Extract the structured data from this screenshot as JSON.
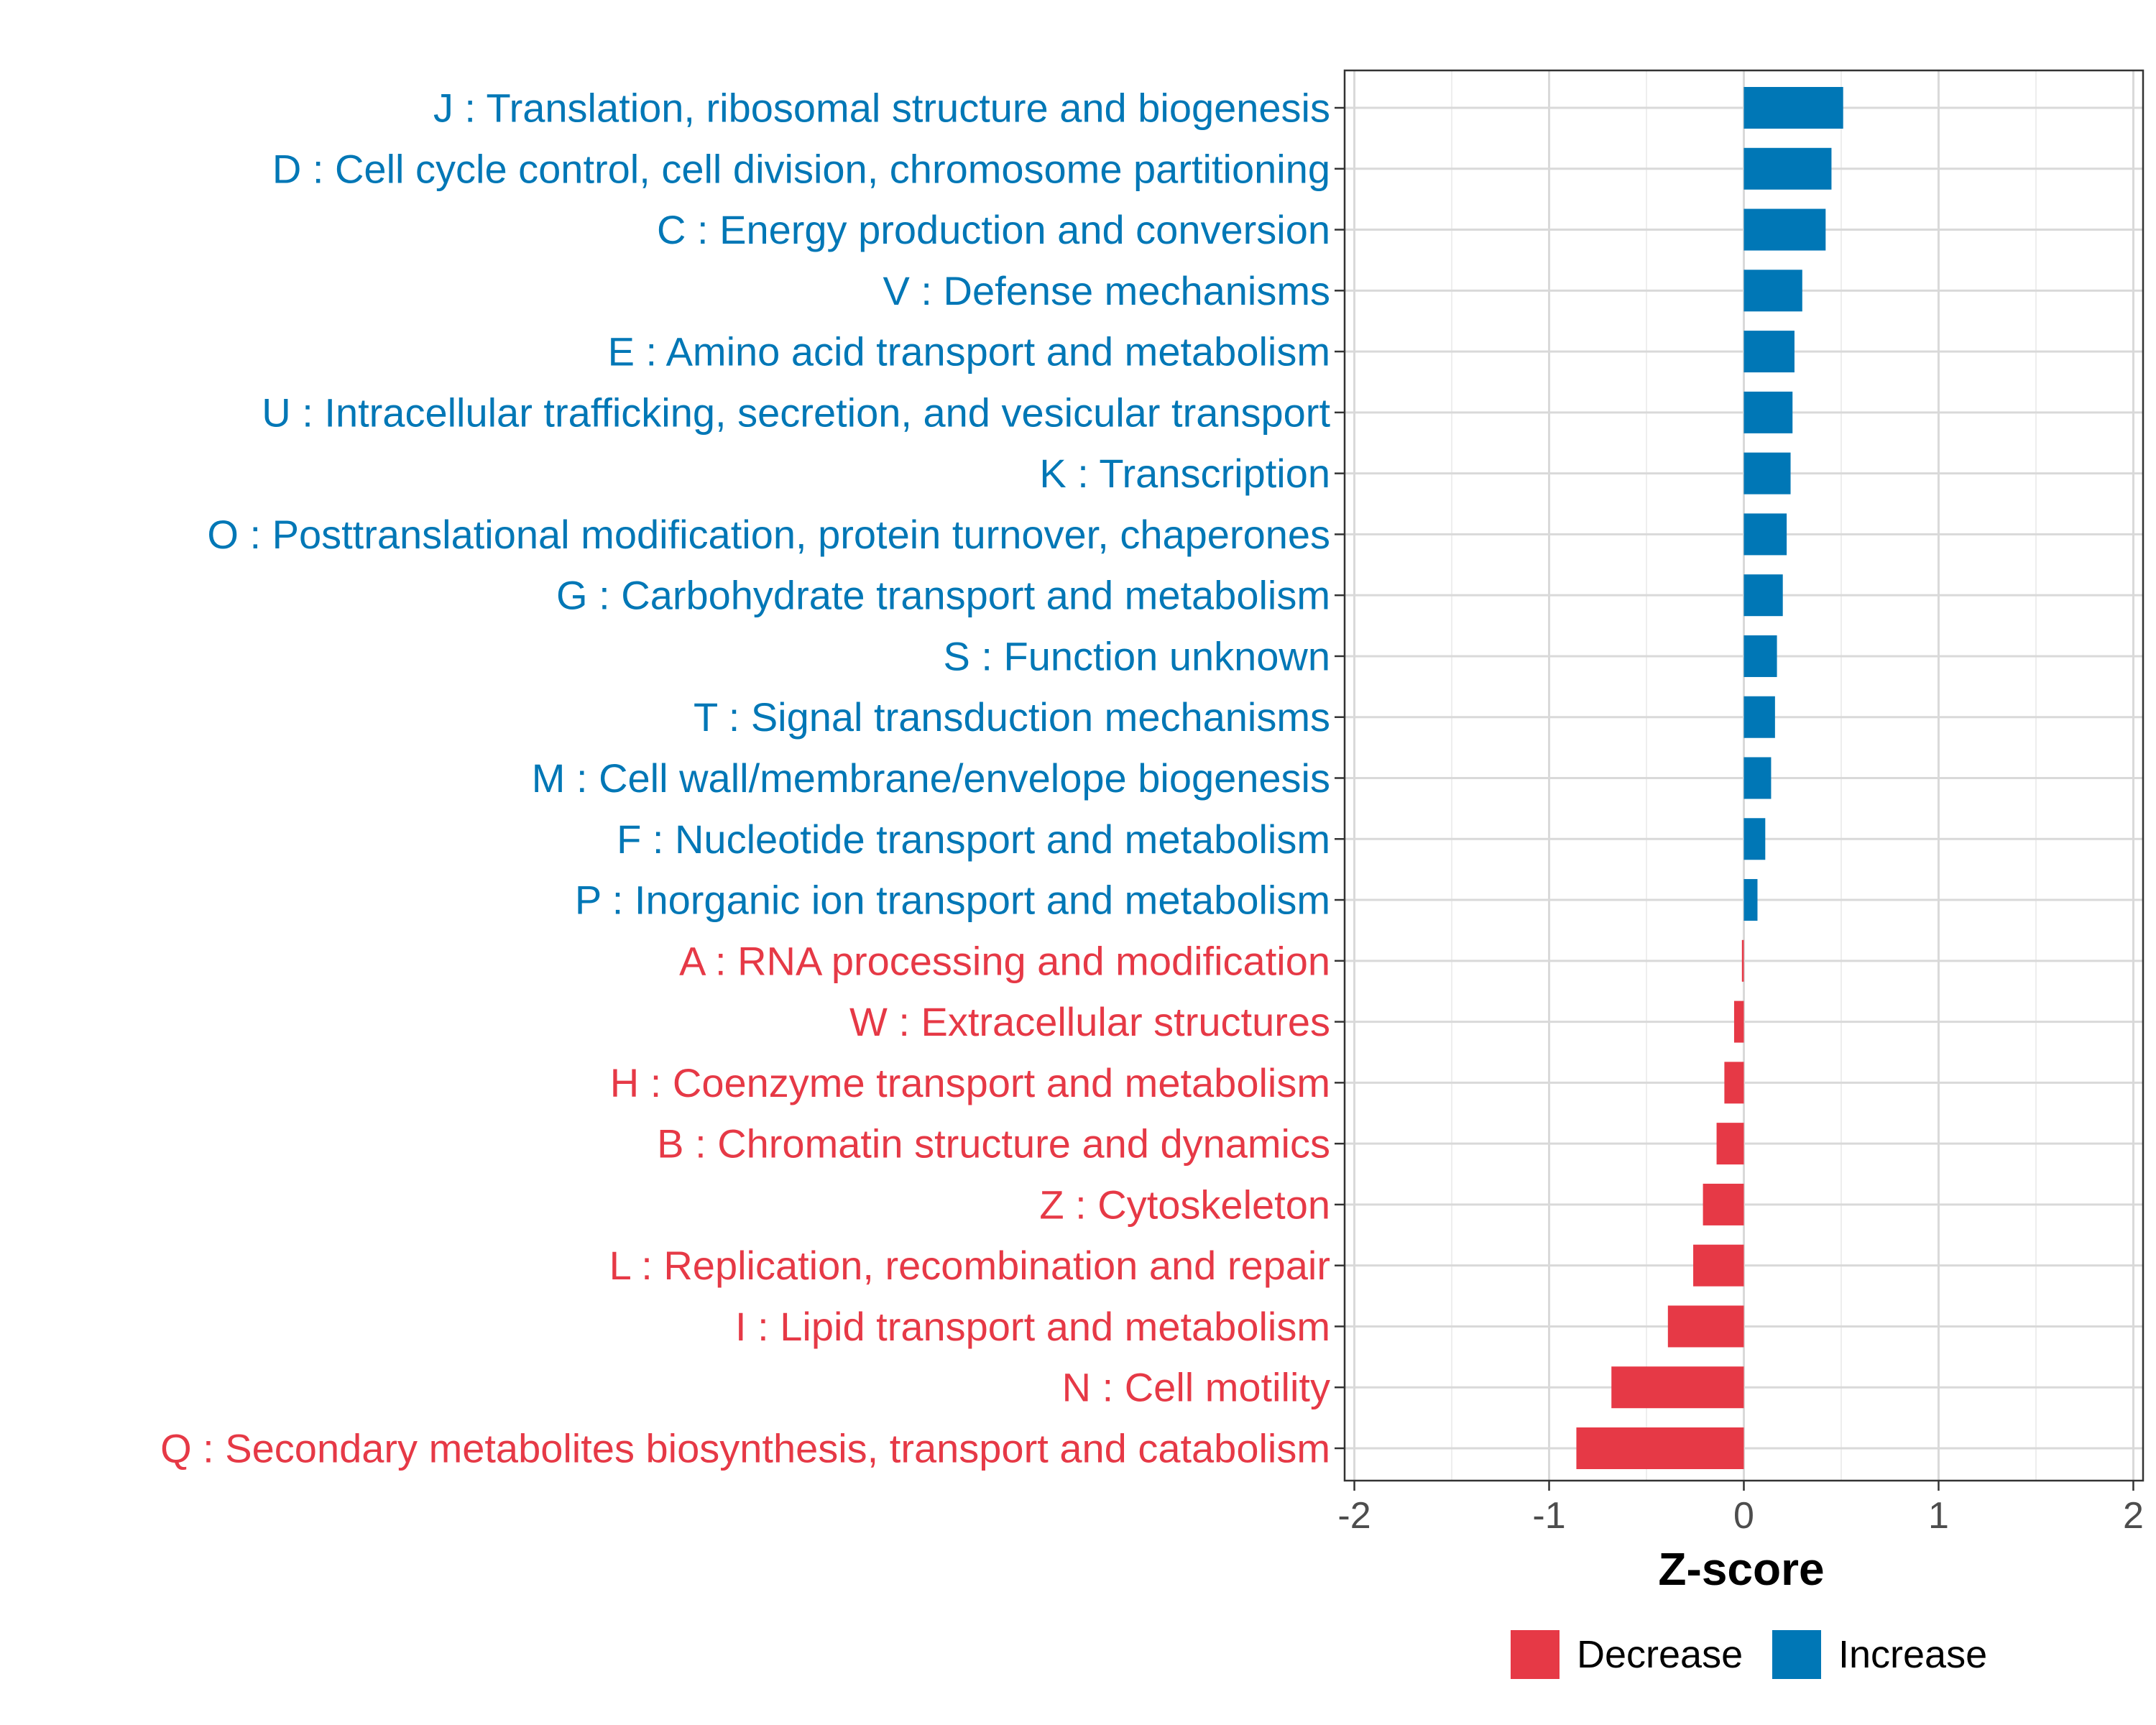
{
  "chart_data": {
    "type": "bar",
    "orientation": "horizontal",
    "title": "",
    "xlabel": "Z-score",
    "ylabel": "",
    "xlim": [
      -2,
      2
    ],
    "xticks": [
      "-2",
      "-1",
      "0",
      "1",
      "2"
    ],
    "grid": true,
    "legend_position": "bottom",
    "colors": {
      "Decrease": "#E63946",
      "Increase": "#0077B6"
    },
    "legend": [
      {
        "name": "Decrease",
        "color": "#E63946"
      },
      {
        "name": "Increase",
        "color": "#0077B6"
      }
    ],
    "categories": [
      "J : Translation, ribosomal structure and biogenesis",
      "D : Cell cycle control, cell division, chromosome partitioning",
      "C : Energy production and conversion",
      "V : Defense mechanisms",
      "E : Amino acid transport and metabolism",
      "U : Intracellular trafficking, secretion, and vesicular transport",
      "K : Transcription",
      "O : Posttranslational modification, protein turnover, chaperones",
      "G : Carbohydrate transport and metabolism",
      "S : Function unknown",
      "T : Signal transduction mechanisms",
      "M : Cell wall/membrane/envelope biogenesis",
      "F : Nucleotide transport and metabolism",
      "P : Inorganic ion transport and metabolism",
      "A : RNA processing and modification",
      "W : Extracellular structures",
      "H : Coenzyme transport and metabolism",
      "B : Chromatin structure and dynamics",
      "Z : Cytoskeleton",
      "L : Replication, recombination and repair",
      "I : Lipid transport and metabolism",
      "N : Cell motility",
      "Q : Secondary metabolites biosynthesis, transport and catabolism"
    ],
    "values": [
      0.51,
      0.45,
      0.42,
      0.3,
      0.26,
      0.25,
      0.24,
      0.22,
      0.2,
      0.17,
      0.16,
      0.14,
      0.11,
      0.07,
      -0.01,
      -0.05,
      -0.1,
      -0.14,
      -0.21,
      -0.26,
      -0.39,
      -0.68,
      -0.86
    ],
    "groups": [
      "Increase",
      "Increase",
      "Increase",
      "Increase",
      "Increase",
      "Increase",
      "Increase",
      "Increase",
      "Increase",
      "Increase",
      "Increase",
      "Increase",
      "Increase",
      "Increase",
      "Decrease",
      "Decrease",
      "Decrease",
      "Decrease",
      "Decrease",
      "Decrease",
      "Decrease",
      "Decrease",
      "Decrease"
    ]
  }
}
